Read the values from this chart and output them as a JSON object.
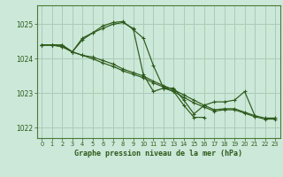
{
  "bg_color": "#cce8d8",
  "grid_color": "#aaccb8",
  "line_color": "#2d5a1b",
  "spine_color": "#4a7a3a",
  "title": "Graphe pression niveau de la mer (hPa)",
  "xlim": [
    -0.5,
    23.5
  ],
  "ylim": [
    1021.7,
    1025.55
  ],
  "yticks": [
    1022,
    1023,
    1024,
    1025
  ],
  "xticks": [
    0,
    1,
    2,
    3,
    4,
    5,
    6,
    7,
    8,
    9,
    10,
    11,
    12,
    13,
    14,
    15,
    16,
    17,
    18,
    19,
    20,
    21,
    22,
    23
  ],
  "series": [
    [
      1024.4,
      1024.4,
      1024.4,
      1024.2,
      1024.6,
      1024.75,
      1024.95,
      1025.05,
      1025.08,
      1024.85,
      1024.6,
      1023.8,
      1023.15,
      1023.15,
      1022.8,
      1022.4,
      1022.65,
      1022.75,
      1022.75,
      1022.8,
      1023.05,
      1022.35,
      null,
      null
    ],
    [
      1024.4,
      1024.4,
      1024.4,
      1024.2,
      1024.55,
      1024.75,
      1024.88,
      1025.0,
      1025.05,
      1024.88,
      1023.55,
      1023.05,
      1023.15,
      1023.05,
      1022.65,
      1022.3,
      1022.3,
      null,
      null,
      null,
      null,
      null,
      null,
      null
    ],
    [
      1024.4,
      1024.4,
      1024.35,
      1024.2,
      1024.1,
      1024.05,
      1023.95,
      1023.85,
      1023.7,
      1023.6,
      1023.5,
      1023.35,
      1023.22,
      1023.1,
      1022.95,
      1022.8,
      1022.65,
      1022.52,
      1022.55,
      1022.55,
      1022.45,
      1022.35,
      1022.28,
      1022.28
    ],
    [
      1024.4,
      1024.4,
      1024.35,
      1024.2,
      1024.1,
      1024.0,
      1023.88,
      1023.78,
      1023.65,
      1023.55,
      1023.45,
      1023.3,
      1023.18,
      1023.05,
      1022.88,
      1022.72,
      1022.6,
      1022.48,
      1022.52,
      1022.52,
      1022.42,
      1022.32,
      1022.25,
      1022.25
    ]
  ]
}
